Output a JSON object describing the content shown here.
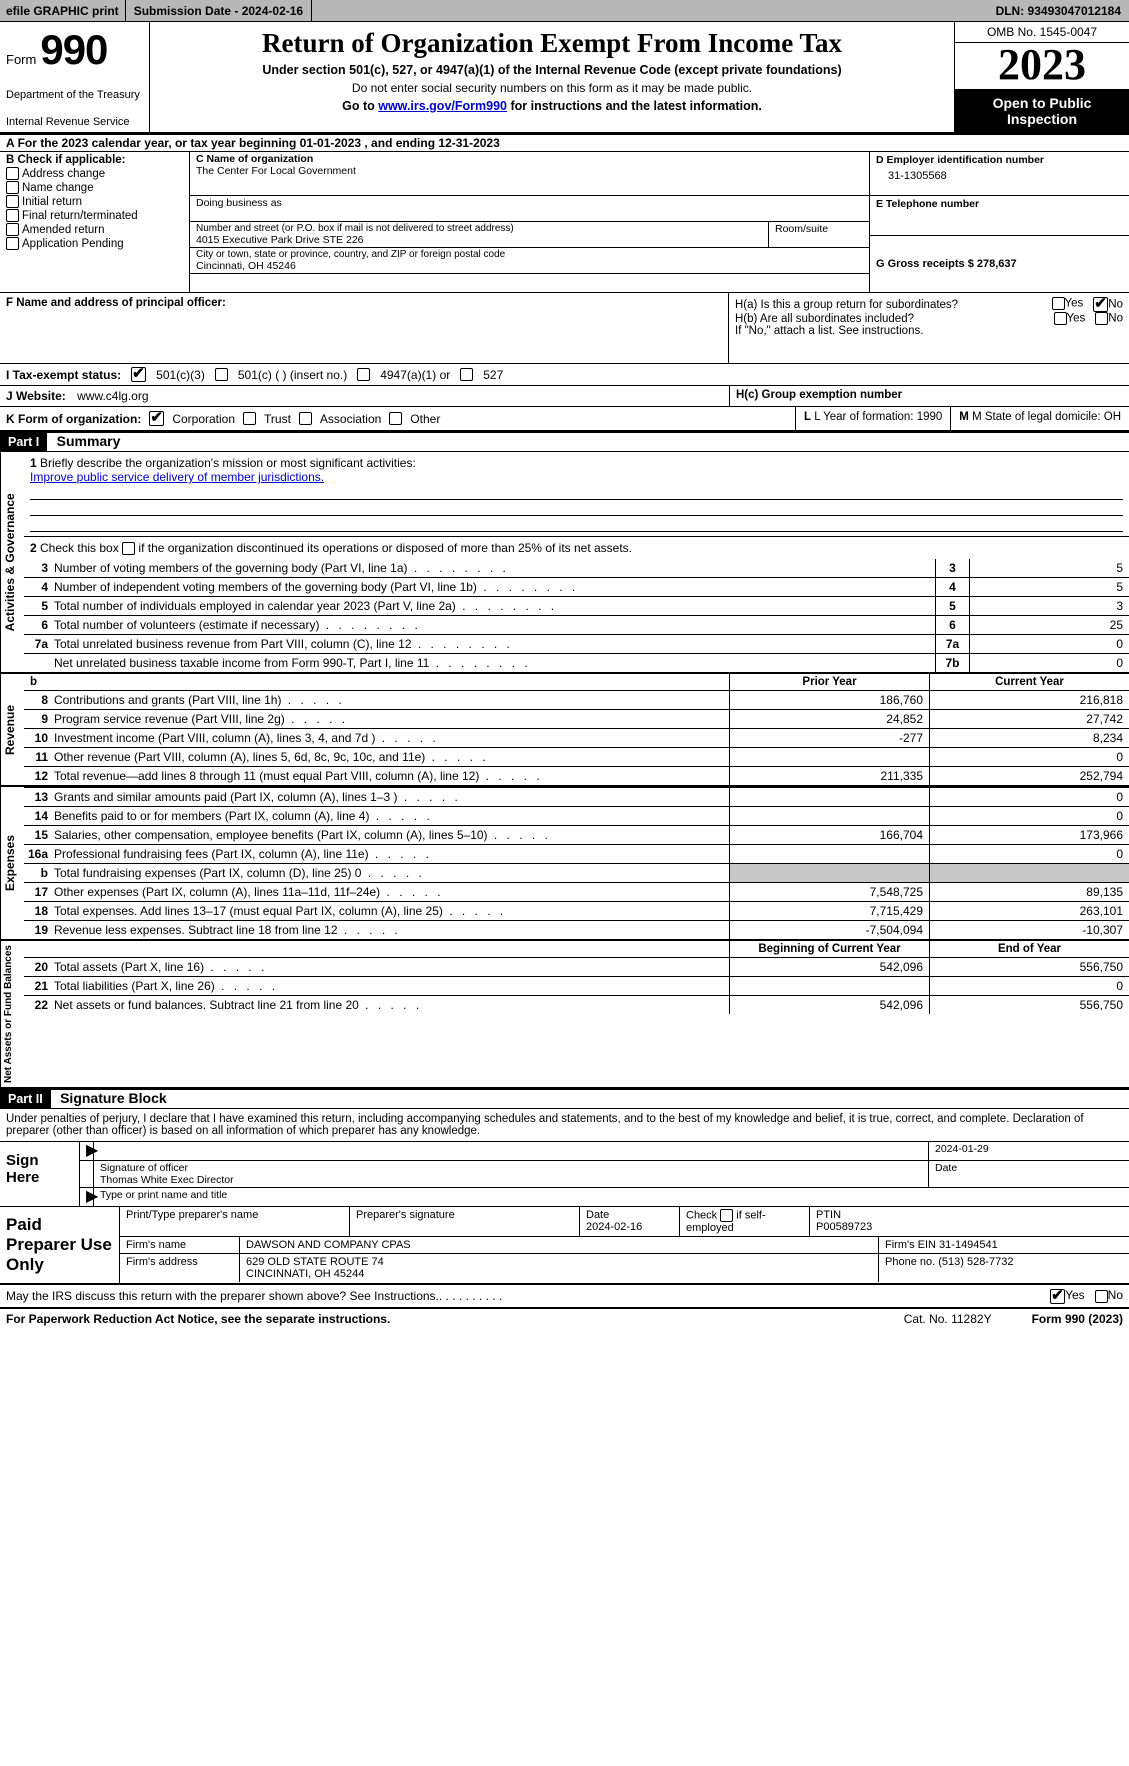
{
  "topbar": {
    "efile_label": "efile GRAPHIC print",
    "submission_label": "Submission Date - 2024-02-16",
    "dln_label": "DLN: 93493047012184"
  },
  "header": {
    "form_word": "Form",
    "form_num": "990",
    "dept": "Department of the Treasury",
    "irs": "Internal Revenue Service",
    "title": "Return of Organization Exempt From Income Tax",
    "sub1": "Under section 501(c), 527, or 4947(a)(1) of the Internal Revenue Code (except private foundations)",
    "sub2": "Do not enter social security numbers on this form as it may be made public.",
    "sub3_pre": "Go to ",
    "sub3_link": "www.irs.gov/Form990",
    "sub3_post": " for instructions and the latest information.",
    "omb": "OMB No. 1545-0047",
    "year": "2023",
    "open": "Open to Public Inspection"
  },
  "A": {
    "text": "For the 2023 calendar year, or tax year beginning 01-01-2023   , and ending 12-31-2023"
  },
  "B": {
    "label": "B Check if applicable:",
    "items": [
      "Address change",
      "Name change",
      "Initial return",
      "Final return/terminated",
      "Amended return",
      "Application Pending"
    ]
  },
  "C": {
    "name_lab": "C Name of organization",
    "name_val": "The Center For Local Government",
    "dba_lab": "Doing business as",
    "street_lab": "Number and street (or P.O. box if mail is not delivered to street address)",
    "street_val": "4015 Executive Park Drive STE 226",
    "room_lab": "Room/suite",
    "city_lab": "City or town, state or province, country, and ZIP or foreign postal code",
    "city_val": "Cincinnati, OH  45246"
  },
  "D": {
    "lab": "D Employer identification number",
    "val": "31-1305568"
  },
  "E": {
    "lab": "E Telephone number"
  },
  "G": {
    "lab": "G Gross receipts $ 278,637"
  },
  "F": {
    "lab": "F   Name and address of principal officer:"
  },
  "H": {
    "a": "H(a)  Is this a group return for subordinates?",
    "b": "H(b)  Are all subordinates included?",
    "note": "If \"No,\" attach a list. See instructions.",
    "c": "H(c)  Group exemption number",
    "yes": "Yes",
    "no": "No"
  },
  "I": {
    "lab": "I    Tax-exempt status:",
    "o1": "501(c)(3)",
    "o2": "501(c) (  ) (insert no.)",
    "o3": "4947(a)(1) or",
    "o4": "527"
  },
  "J": {
    "lab": "J    Website:",
    "val": "www.c4lg.org"
  },
  "K": {
    "lab": "K Form of organization:",
    "o1": "Corporation",
    "o2": "Trust",
    "o3": "Association",
    "o4": "Other"
  },
  "L": {
    "lab": "L Year of formation: 1990"
  },
  "M": {
    "lab": "M State of legal domicile: OH"
  },
  "part1": {
    "hdr": "Part I",
    "title": "Summary"
  },
  "sum": {
    "vlab_ag": "Activities & Governance",
    "vlab_rev": "Revenue",
    "vlab_exp": "Expenses",
    "vlab_net": "Net Assets or Fund Balances",
    "l1_lab": "Briefly describe the organization's mission or most significant activities:",
    "l1_val": "Improve public service delivery of member jurisdictions.",
    "l2": "Check this box          if the organization discontinued its operations or disposed of more than 25% of its net assets.",
    "lines_ag": [
      {
        "n": "3",
        "t": "Number of voting members of the governing body (Part VI, line 1a)",
        "box": "3",
        "v": "5"
      },
      {
        "n": "4",
        "t": "Number of independent voting members of the governing body (Part VI, line 1b)",
        "box": "4",
        "v": "5"
      },
      {
        "n": "5",
        "t": "Total number of individuals employed in calendar year 2023 (Part V, line 2a)",
        "box": "5",
        "v": "3"
      },
      {
        "n": "6",
        "t": "Total number of volunteers (estimate if necessary)",
        "box": "6",
        "v": "25"
      },
      {
        "n": "7a",
        "t": "Total unrelated business revenue from Part VIII, column (C), line 12",
        "box": "7a",
        "v": "0"
      },
      {
        "n": "",
        "t": "Net unrelated business taxable income from Form 990-T, Part I, line 11",
        "box": "7b",
        "v": "0"
      }
    ],
    "prior_lab": "Prior Year",
    "curr_lab": "Current Year",
    "lines_rev": [
      {
        "n": "8",
        "t": "Contributions and grants (Part VIII, line 1h)",
        "p": "186,760",
        "c": "216,818"
      },
      {
        "n": "9",
        "t": "Program service revenue (Part VIII, line 2g)",
        "p": "24,852",
        "c": "27,742"
      },
      {
        "n": "10",
        "t": "Investment income (Part VIII, column (A), lines 3, 4, and 7d )",
        "p": "-277",
        "c": "8,234"
      },
      {
        "n": "11",
        "t": "Other revenue (Part VIII, column (A), lines 5, 6d, 8c, 9c, 10c, and 11e)",
        "p": "",
        "c": "0"
      },
      {
        "n": "12",
        "t": "Total revenue—add lines 8 through 11 (must equal Part VIII, column (A), line 12)",
        "p": "211,335",
        "c": "252,794"
      }
    ],
    "lines_exp": [
      {
        "n": "13",
        "t": "Grants and similar amounts paid (Part IX, column (A), lines 1–3 )",
        "p": "",
        "c": "0"
      },
      {
        "n": "14",
        "t": "Benefits paid to or for members (Part IX, column (A), line 4)",
        "p": "",
        "c": "0"
      },
      {
        "n": "15",
        "t": "Salaries, other compensation, employee benefits (Part IX, column (A), lines 5–10)",
        "p": "166,704",
        "c": "173,966"
      },
      {
        "n": "16a",
        "t": "Professional fundraising fees (Part IX, column (A), line 11e)",
        "p": "",
        "c": "0"
      },
      {
        "n": "b",
        "t": "Total fundraising expenses (Part IX, column (D), line 25) 0",
        "p": "GRAY",
        "c": "GRAY"
      },
      {
        "n": "17",
        "t": "Other expenses (Part IX, column (A), lines 11a–11d, 11f–24e)",
        "p": "7,548,725",
        "c": "89,135"
      },
      {
        "n": "18",
        "t": "Total expenses. Add lines 13–17 (must equal Part IX, column (A), line 25)",
        "p": "7,715,429",
        "c": "263,101"
      },
      {
        "n": "19",
        "t": "Revenue less expenses. Subtract line 18 from line 12",
        "p": "-7,504,094",
        "c": "-10,307"
      }
    ],
    "net_hdr_p": "Beginning of Current Year",
    "net_hdr_c": "End of Year",
    "lines_net": [
      {
        "n": "20",
        "t": "Total assets (Part X, line 16)",
        "p": "542,096",
        "c": "556,750"
      },
      {
        "n": "21",
        "t": "Total liabilities (Part X, line 26)",
        "p": "",
        "c": "0"
      },
      {
        "n": "22",
        "t": "Net assets or fund balances. Subtract line 21 from line 20",
        "p": "542,096",
        "c": "556,750"
      }
    ]
  },
  "part2": {
    "hdr": "Part II",
    "title": "Signature Block"
  },
  "p2": {
    "decl": "Under penalties of perjury, I declare that I have examined this return, including accompanying schedules and statements, and to the best of my knowledge and belief, it is true, correct, and complete. Declaration of preparer (other than officer) is based on all information of which preparer has any knowledge.",
    "sign_here": "Sign Here",
    "sig_officer_lab": "Signature of officer",
    "sig_officer_name": "Thomas White  Exec Director",
    "sig_type_lab": "Type or print name and title",
    "sig_date": "2024-01-29",
    "date_lab": "Date",
    "paid_lab": "Paid Preparer Use Only",
    "prep_name_lab": "Print/Type preparer's name",
    "prep_sig_lab": "Preparer's signature",
    "prep_date_lab": "Date",
    "prep_date": "2024-02-16",
    "prep_check_lab": "Check         if self-employed",
    "ptin_lab": "PTIN",
    "ptin": "P00589723",
    "firm_name_lab": "Firm's name",
    "firm_name": "DAWSON AND COMPANY CPAS",
    "firm_ein_lab": "Firm's EIN",
    "firm_ein": "31-1494541",
    "firm_addr_lab": "Firm's address",
    "firm_addr1": "629 OLD STATE ROUTE 74",
    "firm_addr2": "CINCINNATI, OH  45244",
    "phone_lab": "Phone no.",
    "phone": "(513) 528-7732",
    "may": "May the IRS discuss this return with the preparer shown above? See Instructions.",
    "yes": "Yes",
    "no": "No"
  },
  "footer": {
    "pra": "For Paperwork Reduction Act Notice, see the separate instructions.",
    "cat": "Cat. No. 11282Y",
    "form": "Form 990 (2023)"
  },
  "colors": {
    "topbar_bg": "#b8b8b8",
    "black": "#000000",
    "link": "#0000cc",
    "gray_cell": "#c8c8c8"
  }
}
